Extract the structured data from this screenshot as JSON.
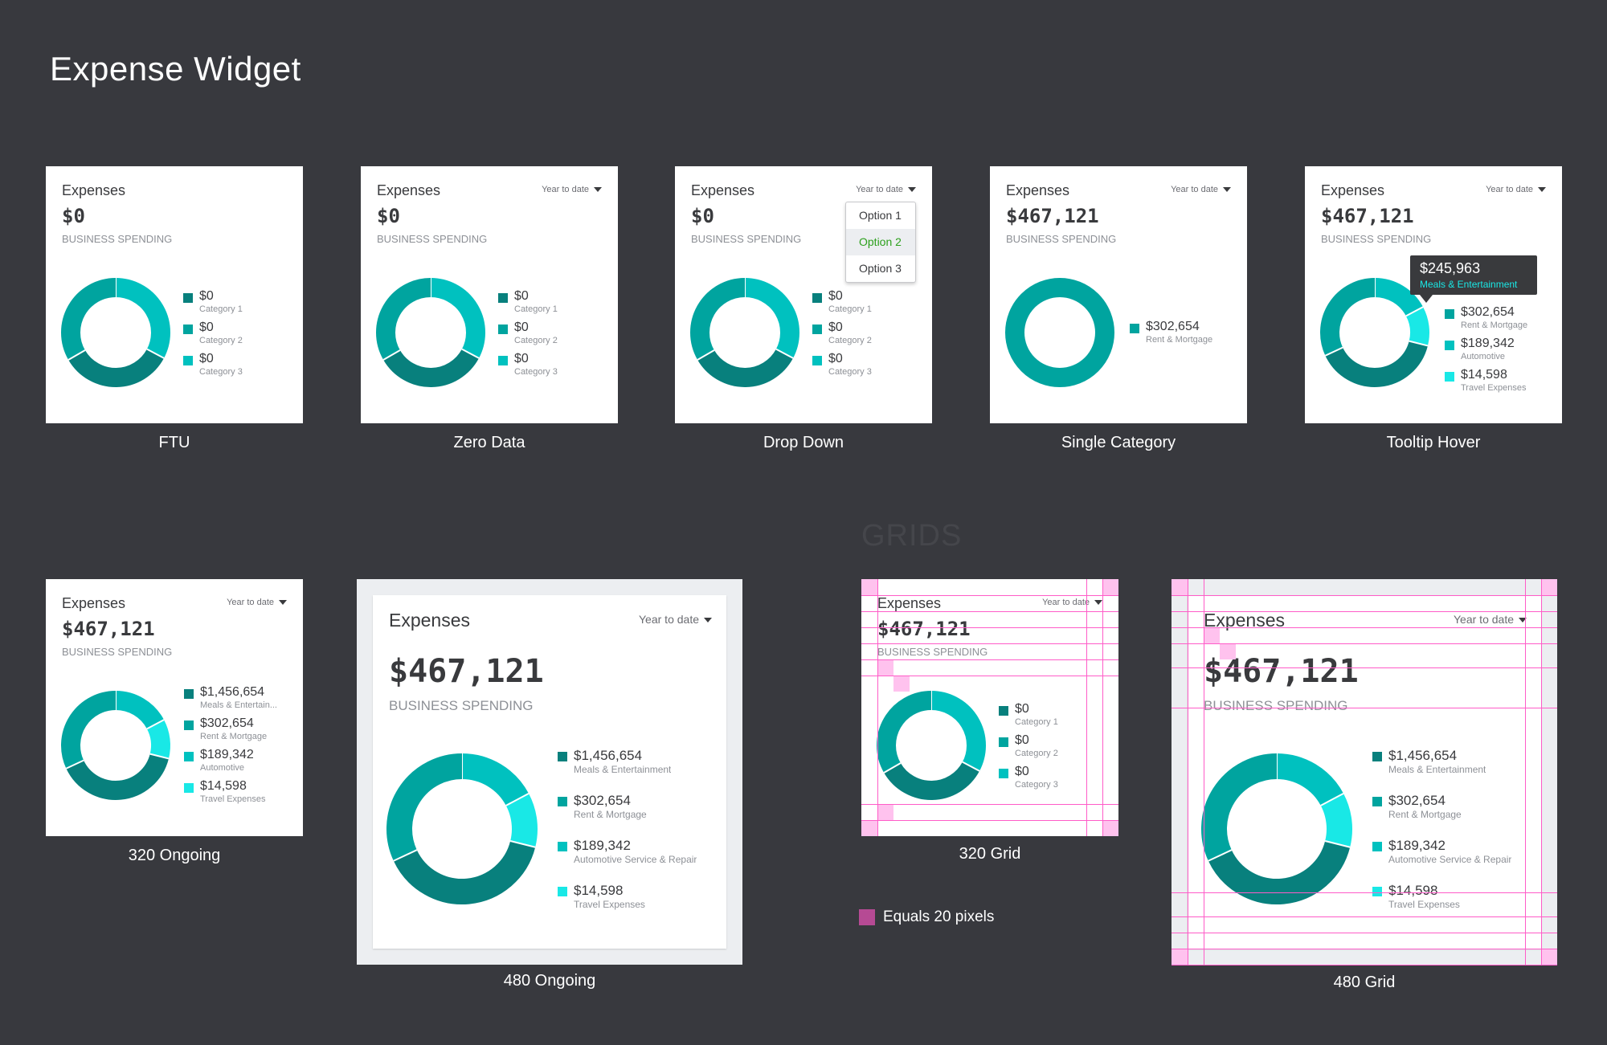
{
  "page_title": "Expense Widget",
  "section_label": "GRIDS",
  "grid_key_label": "Equals 20 pixels",
  "colors": {
    "background": "#38393e",
    "seg_dark": "#08807d",
    "seg_mid": "#00a49f",
    "seg_light": "#00c1bf",
    "seg_cyan": "#19e8e6",
    "grid_line": "#ff5cc8",
    "grid_key": "#b64a94"
  },
  "widgets": [
    {
      "caption": "FTU",
      "title": "Expenses",
      "amount": "$0",
      "subtitle": "BUSINESS SPENDING",
      "period": "",
      "legend": [
        {
          "value": "$0",
          "label": "Category 1"
        },
        {
          "value": "$0",
          "label": "Category 2"
        },
        {
          "value": "$0",
          "label": "Category 3"
        }
      ]
    },
    {
      "caption": "Zero Data",
      "title": "Expenses",
      "amount": "$0",
      "subtitle": "BUSINESS SPENDING",
      "period": "Year to date",
      "legend": [
        {
          "value": "$0",
          "label": "Category 1"
        },
        {
          "value": "$0",
          "label": "Category 2"
        },
        {
          "value": "$0",
          "label": "Category 3"
        }
      ]
    },
    {
      "caption": "Drop Down",
      "title": "Expenses",
      "amount": "$0",
      "subtitle": "BUSINESS SPENDING",
      "period": "Year to date",
      "dropdown_options": [
        "Option 1",
        "Option 2",
        "Option 3"
      ],
      "dropdown_selected": "Option 2",
      "legend": [
        {
          "value": "$0",
          "label": "Category 1"
        },
        {
          "value": "$0",
          "label": "Category 2"
        },
        {
          "value": "$0",
          "label": "Category 3"
        }
      ]
    },
    {
      "caption": "Single Category",
      "title": "Expenses",
      "amount": "$467,121",
      "subtitle": "BUSINESS SPENDING",
      "period": "Year to date",
      "legend": [
        {
          "value": "$302,654",
          "label": "Rent & Mortgage"
        }
      ]
    },
    {
      "caption": "Tooltip Hover",
      "title": "Expenses",
      "amount": "$467,121",
      "subtitle": "BUSINESS SPENDING",
      "period": "Year to date",
      "tooltip": {
        "value": "$245,963",
        "label": "Meals & Entertainment"
      },
      "legend": [
        {
          "value": "$302,654",
          "label": "Rent & Mortgage"
        },
        {
          "value": "$189,342",
          "label": "Automotive"
        },
        {
          "value": "$14,598",
          "label": "Travel Expenses"
        }
      ]
    },
    {
      "caption": "320 Ongoing",
      "title": "Expenses",
      "amount": "$467,121",
      "subtitle": "BUSINESS SPENDING",
      "period": "Year to date",
      "legend": [
        {
          "value": "$1,456,654",
          "label": "Meals & Entertain..."
        },
        {
          "value": "$302,654",
          "label": "Rent & Mortgage"
        },
        {
          "value": "$189,342",
          "label": "Automotive"
        },
        {
          "value": "$14,598",
          "label": "Travel Expenses"
        }
      ]
    },
    {
      "caption": "480 Ongoing",
      "title": "Expenses",
      "amount": "$467,121",
      "subtitle": "BUSINESS SPENDING",
      "period": "Year to date",
      "legend": [
        {
          "value": "$1,456,654",
          "label": "Meals & Entertainment"
        },
        {
          "value": "$302,654",
          "label": "Rent & Mortgage"
        },
        {
          "value": "$189,342",
          "label": "Automotive Service & Repair"
        },
        {
          "value": "$14,598",
          "label": "Travel Expenses"
        }
      ]
    },
    {
      "caption": "320 Grid",
      "title": "Expenses",
      "amount": "$467,121",
      "subtitle": "BUSINESS SPENDING",
      "period": "Year to date",
      "legend": [
        {
          "value": "$0",
          "label": "Category 1"
        },
        {
          "value": "$0",
          "label": "Category 2"
        },
        {
          "value": "$0",
          "label": "Category 3"
        }
      ]
    },
    {
      "caption": "480 Grid",
      "title": "Expenses",
      "amount": "$467,121",
      "subtitle": "BUSINESS SPENDING",
      "period": "Year to date",
      "legend": [
        {
          "value": "$1,456,654",
          "label": "Meals & Entertainment"
        },
        {
          "value": "$302,654",
          "label": "Rent & Mortgage"
        },
        {
          "value": "$189,342",
          "label": "Automotive Service & Repair"
        },
        {
          "value": "$14,598",
          "label": "Travel Expenses"
        }
      ]
    }
  ]
}
